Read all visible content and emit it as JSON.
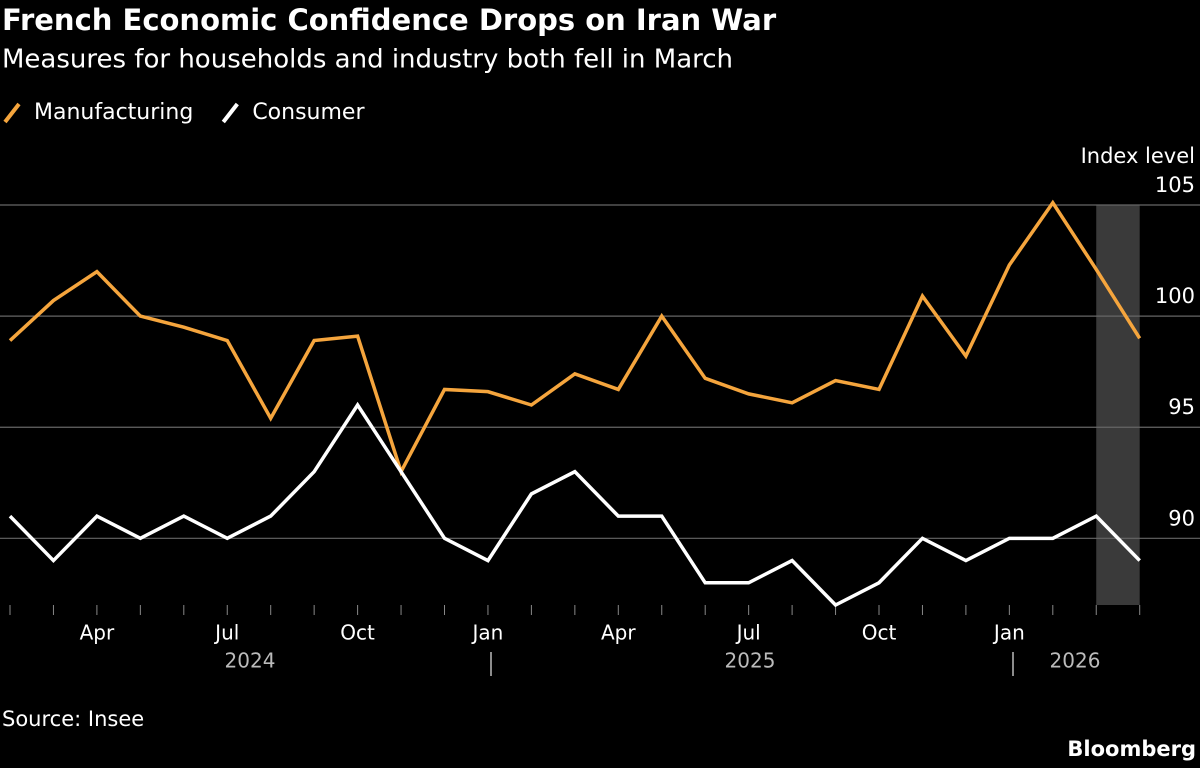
{
  "chart_data": {
    "type": "line",
    "title": "French Economic Confidence Drops on Iran War",
    "subtitle": "Measures for households and industry both fell in March",
    "y_axis_label": "Index level",
    "source": "Source: Insee",
    "brand": "Bloomberg",
    "categories": [
      null,
      null,
      "Apr",
      null,
      null,
      "Jul",
      null,
      null,
      "Oct",
      null,
      null,
      "Jan",
      null,
      null,
      "Apr",
      null,
      null,
      "Jul",
      null,
      null,
      "Oct",
      null,
      null,
      "Jan",
      null,
      null,
      null
    ],
    "year_labels": [
      "2024",
      "2025",
      "2026"
    ],
    "series": [
      {
        "name": "Manufacturing",
        "color": "#f5a53d",
        "values": [
          98.9,
          100.7,
          102.0,
          100.0,
          99.5,
          98.9,
          95.4,
          98.9,
          99.1,
          93.0,
          96.7,
          96.6,
          96.0,
          97.4,
          96.7,
          100.0,
          97.2,
          96.5,
          96.1,
          97.1,
          96.7,
          100.9,
          98.2,
          102.3,
          105.1,
          102.1,
          99.0
        ]
      },
      {
        "name": "Consumer",
        "color": "#ffffff",
        "values": [
          91,
          89,
          91,
          90,
          91,
          90,
          91,
          93,
          96,
          93,
          90,
          89,
          92,
          93,
          91,
          91,
          88,
          88,
          89,
          87,
          88,
          90,
          89,
          90,
          90,
          91,
          89
        ]
      }
    ],
    "ylim": [
      87,
      105
    ],
    "yticks": [
      90,
      95,
      100,
      105
    ],
    "grid": true
  }
}
